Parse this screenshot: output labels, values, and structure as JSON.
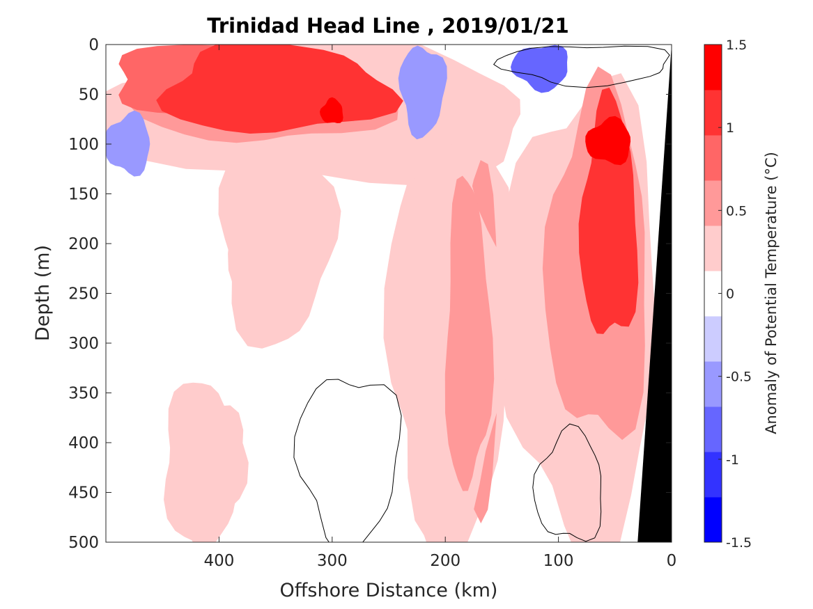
{
  "chart_data": {
    "type": "heatmap",
    "title": "Trinidad Head Line , 2019/01/21",
    "xlabel": "Offshore Distance (km)",
    "ylabel": "Depth (m)",
    "x_reversed": true,
    "y_reversed": true,
    "xlim": [
      0,
      500
    ],
    "ylim": [
      0,
      500
    ],
    "xticks": [
      400,
      300,
      200,
      100,
      0
    ],
    "yticks": [
      0,
      50,
      100,
      150,
      200,
      250,
      300,
      350,
      400,
      450,
      500
    ],
    "colorbar": {
      "label": "Anomaly of Potential Temperature (°C)",
      "levels": [
        -1.5,
        -1.25,
        -1,
        -0.75,
        -0.5,
        -0.25,
        0.25,
        0.5,
        0.75,
        1,
        1.25,
        1.5
      ],
      "tick_labels": [
        "1.5",
        "1",
        "0.5",
        "0",
        "-0.5",
        "-1",
        "-1.5"
      ],
      "colors": [
        "#0000ff",
        "#3333ff",
        "#6666ff",
        "#9999ff",
        "#ccccff",
        "#ffffff",
        "#ffcccc",
        "#ff9999",
        "#ff6666",
        "#ff3333",
        "#ff0000"
      ]
    },
    "features": [
      {
        "kind": "warm",
        "level": 0.75,
        "x": [
          345,
          495
        ],
        "y": [
          0,
          70
        ],
        "note": "surface warm layer offshore"
      },
      {
        "kind": "warm",
        "level": 1.0,
        "x": [
          250,
          450
        ],
        "y": [
          0,
          90
        ]
      },
      {
        "kind": "warm",
        "level": 1.25,
        "x": [
          290,
          310
        ],
        "y": [
          55,
          80
        ]
      },
      {
        "kind": "cold",
        "level": -0.5,
        "x": [
          460,
          500
        ],
        "y": [
          70,
          130
        ]
      },
      {
        "kind": "cold",
        "level": -0.75,
        "x": [
          90,
          140
        ],
        "y": [
          0,
          45
        ]
      },
      {
        "kind": "cold",
        "level": -0.5,
        "x": [
          200,
          240
        ],
        "y": [
          0,
          90
        ]
      },
      {
        "kind": "warm",
        "level": 0.25,
        "x": [
          150,
          240
        ],
        "y": [
          100,
          500
        ],
        "note": "deep warm column ~180 km"
      },
      {
        "kind": "warm",
        "level": 0.5,
        "x": [
          160,
          200
        ],
        "y": [
          140,
          450
        ]
      },
      {
        "kind": "warm",
        "level": 1.0,
        "x": [
          30,
          80
        ],
        "y": [
          60,
          300
        ],
        "note": "nearshore warm core"
      },
      {
        "kind": "warm",
        "level": 1.25,
        "x": [
          35,
          75
        ],
        "y": [
          75,
          120
        ]
      },
      {
        "kind": "warm",
        "level": 0.25,
        "x": [
          330,
          390
        ],
        "y": [
          140,
          280
        ]
      },
      {
        "kind": "warm",
        "level": 0.25,
        "x": [
          380,
          440
        ],
        "y": [
          350,
          500
        ]
      }
    ],
    "bathymetry": {
      "color": "#000000",
      "surface_x": 0,
      "bottom_x": 30
    }
  }
}
